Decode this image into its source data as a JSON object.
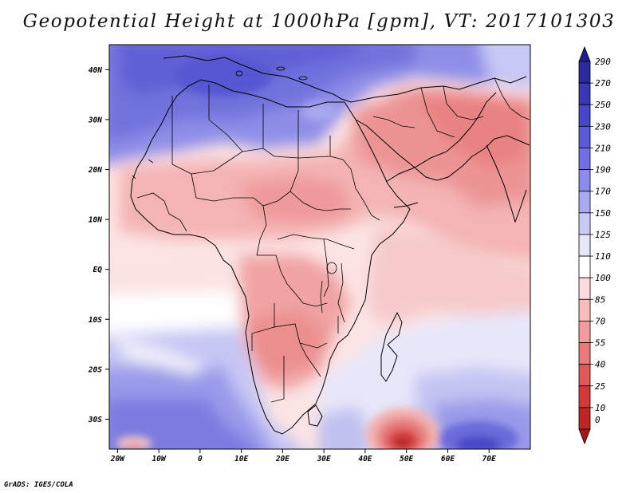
{
  "title": "Geopotential Height at 1000hPa [gpm], VT: 2017101303",
  "footer": "GrADS: IGES/COLA",
  "map": {
    "variable": "Geopotential Height",
    "level": "1000hPa",
    "units": "gpm",
    "valid_time": "2017101303",
    "region": "Africa and Middle East",
    "lon_range": [
      -22,
      80
    ],
    "lat_range": [
      -36,
      45
    ],
    "lon_ticks": [
      {
        "value": -20,
        "label": "20W"
      },
      {
        "value": -10,
        "label": "10W"
      },
      {
        "value": 0,
        "label": "0"
      },
      {
        "value": 10,
        "label": "10E"
      },
      {
        "value": 20,
        "label": "20E"
      },
      {
        "value": 30,
        "label": "30E"
      },
      {
        "value": 40,
        "label": "40E"
      },
      {
        "value": 50,
        "label": "50E"
      },
      {
        "value": 60,
        "label": "60E"
      },
      {
        "value": 70,
        "label": "70E"
      }
    ],
    "lat_ticks": [
      {
        "value": 40,
        "label": "40N"
      },
      {
        "value": 30,
        "label": "30N"
      },
      {
        "value": 20,
        "label": "20N"
      },
      {
        "value": 10,
        "label": "10N"
      },
      {
        "value": 0,
        "label": "EQ"
      },
      {
        "value": -10,
        "label": "10S"
      },
      {
        "value": -20,
        "label": "20S"
      },
      {
        "value": -30,
        "label": "30S"
      }
    ],
    "features": [
      {
        "name": "low-south-of-madagascar",
        "lon": 50,
        "lat": -35,
        "value": 10
      },
      {
        "name": "high-southern-indian-ocean",
        "lon": 68,
        "lat": -35,
        "value": 230
      },
      {
        "name": "high-south-atlantic",
        "lon": 0,
        "lat": -32,
        "value": 210
      },
      {
        "name": "high-mediterranean",
        "lon": 15,
        "lat": 38,
        "value": 190
      }
    ]
  },
  "colorbar": {
    "top_label": "290",
    "bottom_label": "0",
    "bins": [
      {
        "label": "270",
        "color": "#2a2a9e"
      },
      {
        "label": "250",
        "color": "#3838b4"
      },
      {
        "label": "230",
        "color": "#4747c8"
      },
      {
        "label": "210",
        "color": "#5a5ad8"
      },
      {
        "label": "190",
        "color": "#7070e2"
      },
      {
        "label": "170",
        "color": "#8c8ceb"
      },
      {
        "label": "150",
        "color": "#aaaaf1"
      },
      {
        "label": "125",
        "color": "#cacaf6"
      },
      {
        "label": "110",
        "color": "#e7e7fa"
      },
      {
        "label": "100",
        "color": "#ffffff"
      },
      {
        "label": "85",
        "color": "#fcdcdc"
      },
      {
        "label": "70",
        "color": "#f7bcbc"
      },
      {
        "label": "55",
        "color": "#f19c9c"
      },
      {
        "label": "40",
        "color": "#e97a7a"
      },
      {
        "label": "25",
        "color": "#e05858"
      },
      {
        "label": "10",
        "color": "#d23a3a"
      },
      {
        "label": "",
        "color": "#c02525"
      }
    ],
    "top_color": "#1f1f8a",
    "bottom_color": "#a01818"
  }
}
